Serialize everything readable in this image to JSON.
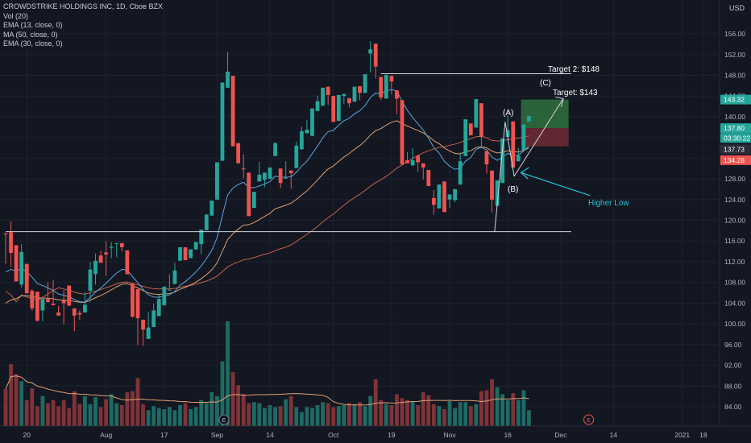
{
  "header": {
    "title": "CROWDSTRIKE HOLDINGS INC, 1D, Cboe BZX",
    "indicators": [
      "Vol (20)",
      "EMA (13, close, 0)",
      "MA (50, close, 0)",
      "EMA (30, close, 0)"
    ],
    "currency": "USD"
  },
  "colors": {
    "background": "#131722",
    "up": "#26a69a",
    "down": "#ef5350",
    "ema13": "#5aa6d8",
    "ma50": "#c7604f",
    "ema30": "#e0a070",
    "target_box": "#2e6b3c",
    "stop_box": "#6b2a33",
    "higher_low": "#26c6da"
  },
  "annotations": {
    "target2": "Target 2: $148",
    "target": "Target: $143",
    "wave_a": "(A)",
    "wave_b": "(B)",
    "wave_c": "(C)",
    "higher_low": "Higher Low",
    "earnings_marker": "E"
  },
  "chart_data": {
    "type": "candlestick",
    "title": "CROWDSTRIKE HOLDINGS INC, 1D, Cboe BZX",
    "y_ticks": [
      "84.00",
      "88.00",
      "92.00",
      "96.00",
      "100.00",
      "104.00",
      "108.00",
      "112.00",
      "116.00",
      "120.00",
      "124.00",
      "128.00",
      "132.00",
      "136.00",
      "140.00",
      "144.00",
      "148.00",
      "152.00",
      "156.00"
    ],
    "x_ticks": [
      {
        "label": "20",
        "day": 4
      },
      {
        "label": "Aug",
        "day": 19
      },
      {
        "label": "17",
        "day": 30
      },
      {
        "label": "Sep",
        "day": 40
      },
      {
        "label": "14",
        "day": 50
      },
      {
        "label": "Oct",
        "day": 62
      },
      {
        "label": "19",
        "day": 73
      },
      {
        "label": "Nov",
        "day": 84
      },
      {
        "label": "16",
        "day": 95
      },
      {
        "label": "Dec",
        "day": 105
      },
      {
        "label": "14",
        "day": 115
      },
      {
        "label": "2021",
        "day": 128
      },
      {
        "label": "18",
        "day": 132
      }
    ],
    "ylim": [
      82,
      160
    ],
    "price_labels": [
      {
        "label": "143.32",
        "value": 143.32,
        "color": "#26a69a"
      },
      {
        "label": "137.80",
        "value": 137.8,
        "color": "#26a69a"
      },
      {
        "label": "03:30:22",
        "value": 135.9,
        "color": "#26a69a"
      },
      {
        "label": "137.73",
        "value": 133.7,
        "color": "#2a2e39"
      },
      {
        "label": "134.28",
        "value": 131.6,
        "color": "#ef5350"
      }
    ],
    "horizontal_levels": [
      {
        "name": "support",
        "value": 117.8,
        "from_day": 0,
        "to_day": 107
      },
      {
        "name": "target2",
        "value": 148.3,
        "from_day": 71,
        "to_day": 107
      }
    ],
    "position_box": {
      "from_day": 97.5,
      "to_day": 106.5,
      "entry": 137.8,
      "target": 143.32,
      "stop": 134.28
    },
    "candles": [
      [
        117.5,
        117.3,
        111.6,
        117.3,
        3.7
      ],
      [
        117.7,
        119.8,
        111.0,
        113.7,
        6.2
      ],
      [
        115.2,
        114.2,
        108.2,
        108.2,
        5.2
      ],
      [
        107.6,
        115.4,
        107.0,
        113.9,
        4.5
      ],
      [
        111.6,
        108.7,
        108.3,
        105.9,
        2.6
      ],
      [
        106.4,
        106.7,
        102.5,
        103.0,
        3.8
      ],
      [
        106.2,
        104.5,
        100.5,
        100.6,
        2.0
      ],
      [
        102.6,
        102.7,
        100.5,
        104.8,
        3.0
      ],
      [
        104.8,
        108.1,
        104.2,
        104.2,
        2.3
      ],
      [
        103.9,
        108.5,
        103.7,
        103.6,
        2.6
      ],
      [
        102.2,
        103.5,
        103.5,
        101.6,
        2.0
      ],
      [
        104.6,
        106.5,
        99.9,
        104.0,
        2.6
      ],
      [
        107.4,
        104.4,
        105.1,
        103.5,
        1.8
      ],
      [
        103.0,
        101.3,
        98.6,
        101.6,
        3.5
      ],
      [
        102.1,
        102.6,
        100.8,
        101.8,
        2.2
      ],
      [
        102.2,
        106.2,
        106.0,
        103.7,
        3.0
      ],
      [
        106.4,
        112.0,
        104.3,
        110.5,
        2.2
      ],
      [
        109.6,
        113.6,
        107.6,
        112.2,
        2.9
      ],
      [
        113.2,
        112.5,
        114.1,
        111.8,
        1.9
      ],
      [
        113.8,
        116.0,
        109.2,
        113.4,
        2.7
      ],
      [
        114.7,
        115.8,
        112.7,
        114.9,
        3.2
      ],
      [
        115.5,
        113.9,
        112.9,
        115.6,
        2.3
      ],
      [
        115.6,
        114.0,
        114.9,
        114.8,
        2.1
      ],
      [
        114.2,
        111.5,
        114.2,
        109.6,
        3.4
      ],
      [
        107.8,
        106.7,
        101.2,
        101.4,
        3.5
      ],
      [
        106.7,
        102.5,
        95.9,
        101.1,
        4.8
      ],
      [
        100.8,
        97.8,
        95.8,
        98.9,
        2.2
      ],
      [
        97.1,
        102.3,
        99.8,
        99.3,
        1.6
      ],
      [
        99.4,
        103.9,
        103.2,
        102.6,
        2.0
      ],
      [
        101.5,
        102.2,
        105.7,
        104.8,
        1.8
      ],
      [
        103.6,
        104.3,
        105.9,
        107.2,
        1.7
      ],
      [
        106.6,
        109.6,
        106.8,
        106.6,
        1.9
      ],
      [
        107.7,
        111.8,
        110.0,
        110.3,
        1.6
      ],
      [
        112.2,
        112.6,
        114.0,
        114.8,
        2.1
      ],
      [
        114.8,
        113.2,
        114.7,
        112.3,
        2.3
      ],
      [
        112.7,
        113.9,
        114.2,
        114.4,
        1.7
      ],
      [
        114.4,
        114.3,
        115.4,
        115.8,
        1.9
      ],
      [
        115.4,
        117.4,
        113.5,
        118.2,
        2.6
      ],
      [
        118.1,
        120.2,
        121.2,
        121.1,
        2.3
      ],
      [
        120.9,
        123.2,
        122.3,
        123.8,
        3.4
      ],
      [
        124.0,
        126.3,
        129.0,
        131.2,
        3.0
      ],
      [
        131.5,
        143.7,
        132.5,
        146.6,
        6.5
      ],
      [
        145.6,
        152.5,
        148.0,
        148.7,
        10.5
      ],
      [
        147.9,
        138.4,
        137.9,
        134.3,
        5.4
      ],
      [
        134.9,
        132.0,
        132.3,
        131.0,
        4.1
      ],
      [
        130.0,
        128.1,
        132.8,
        129.9,
        3.2
      ],
      [
        129.2,
        126.7,
        128.6,
        120.8,
        2.3
      ],
      [
        122.4,
        125.1,
        122.6,
        125.5,
        2.4
      ],
      [
        127.5,
        131.3,
        131.2,
        128.8,
        2.3
      ],
      [
        127.8,
        127.6,
        126.4,
        129.2,
        1.8
      ],
      [
        128.0,
        128.7,
        128.4,
        130.2,
        2.1
      ],
      [
        132.4,
        132.5,
        135.1,
        134.9,
        1.9
      ],
      [
        130.0,
        126.2,
        127.6,
        127.2,
        2.0
      ],
      [
        128.1,
        130.2,
        131.4,
        128.2,
        2.7
      ],
      [
        129.6,
        129.7,
        126.1,
        129.1,
        3.0
      ],
      [
        130.1,
        135.2,
        135.2,
        134.4,
        1.9
      ],
      [
        133.7,
        138.1,
        137.9,
        137.2,
        1.4
      ],
      [
        136.8,
        137.3,
        139.4,
        137.5,
        1.9
      ],
      [
        136.3,
        139.3,
        140.5,
        141.6,
        1.8
      ],
      [
        141.1,
        144.1,
        141.9,
        143.0,
        2.1
      ],
      [
        142.1,
        145.5,
        143.9,
        145.6,
        2.4
      ],
      [
        145.8,
        144.7,
        142.3,
        144.2,
        2.3
      ],
      [
        144.0,
        141.6,
        141.6,
        139.0,
        1.9
      ],
      [
        139.2,
        142.2,
        140.8,
        144.2,
        2.0
      ],
      [
        144.0,
        142.4,
        143.9,
        144.4,
        2.1
      ],
      [
        143.6,
        143.0,
        141.8,
        142.6,
        2.3
      ],
      [
        142.9,
        143.7,
        145.0,
        145.8,
        2.2
      ],
      [
        145.9,
        143.2,
        145.6,
        144.6,
        2.4
      ],
      [
        144.6,
        146.9,
        147.6,
        148.2,
        2.0
      ],
      [
        152.2,
        154.6,
        148.6,
        153.0,
        3.0
      ],
      [
        154.1,
        147.4,
        149.3,
        149.7,
        4.7
      ],
      [
        147.7,
        146.7,
        143.2,
        143.7,
        2.6
      ],
      [
        143.5,
        146.6,
        145.4,
        148.1,
        2.2
      ],
      [
        147.9,
        144.3,
        146.5,
        146.8,
        2.1
      ],
      [
        145.1,
        140.5,
        142.8,
        143.5,
        3.2
      ],
      [
        143.2,
        138.6,
        133.5,
        130.8,
        2.8
      ],
      [
        131.6,
        133.2,
        131.4,
        131.0,
        2.6
      ],
      [
        130.6,
        132.6,
        133.9,
        131.6,
        2.5
      ],
      [
        132.5,
        131.0,
        129.4,
        131.2,
        2.1
      ],
      [
        131.0,
        128.9,
        127.9,
        130.2,
        3.4
      ],
      [
        129.7,
        129.0,
        128.9,
        126.6,
        3.1
      ],
      [
        124.3,
        125.8,
        121.1,
        123.0,
        2.2
      ],
      [
        122.3,
        126.3,
        125.4,
        126.9,
        2.0
      ],
      [
        127.5,
        124.3,
        124.9,
        121.6,
        1.7
      ],
      [
        124.0,
        123.3,
        122.3,
        125.0,
        2.5
      ],
      [
        123.9,
        123.5,
        126.1,
        126.0,
        1.8
      ],
      [
        126.9,
        132.6,
        133.1,
        131.4,
        2.4
      ],
      [
        132.4,
        137.3,
        138.6,
        139.5,
        2.4
      ],
      [
        138.7,
        138.5,
        137.6,
        136.4,
        2.0
      ],
      [
        137.9,
        140.4,
        142.1,
        143.4,
        2.2
      ],
      [
        142.6,
        136.8,
        134.1,
        136.1,
        3.5
      ],
      [
        133.4,
        129.6,
        129.0,
        130.8,
        3.6
      ],
      [
        129.6,
        127.6,
        121.5,
        124.0,
        4.7
      ],
      [
        122.8,
        126.3,
        126.8,
        127.7,
        3.9
      ],
      [
        127.2,
        133.5,
        134.2,
        135.8,
        3.2
      ],
      [
        136.1,
        139.3,
        140.3,
        137.4,
        2.6
      ],
      [
        139.1,
        135.5,
        132.4,
        130.2,
        3.3
      ],
      [
        131.4,
        133.6,
        134.0,
        132.5,
        2.6
      ],
      [
        133.6,
        137.2,
        136.3,
        138.5,
        3.6
      ],
      [
        139.1,
        139.2,
        139.1,
        140.1,
        1.6
      ]
    ],
    "candles_fields": "open, high, low, close, volume (millions, approx)",
    "series": [
      {
        "name": "EMA (13, close, 0)"
      },
      {
        "name": "MA (50, close, 0)"
      },
      {
        "name": "EMA (30, close, 0)"
      }
    ]
  }
}
